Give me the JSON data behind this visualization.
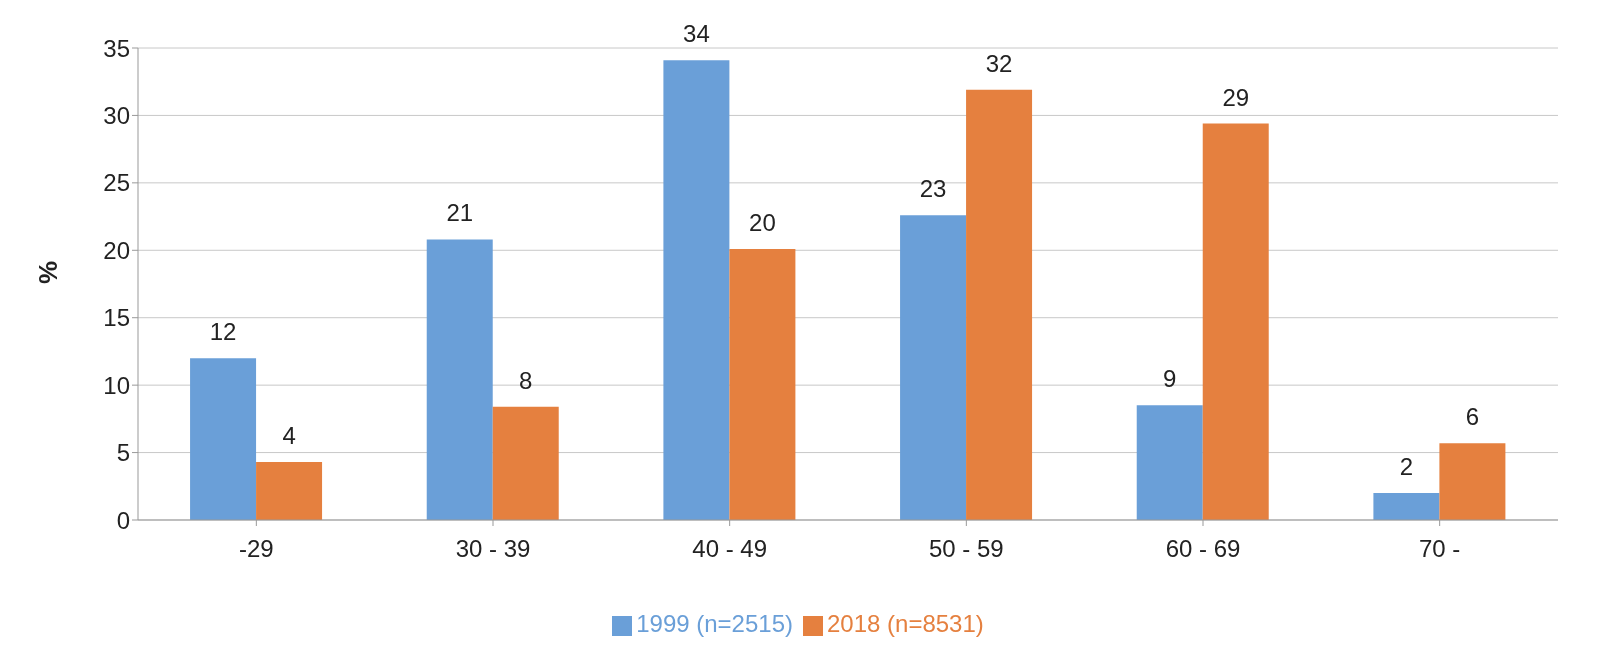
{
  "chart_data": {
    "type": "bar",
    "ylabel": "%",
    "categories": [
      "-29",
      "30 - 39",
      "40 - 49",
      "50 - 59",
      "60 - 69",
      "70 -"
    ],
    "series": [
      {
        "name": "1999 (n=2515)",
        "color": "#6a9fd8",
        "values": [
          12,
          20.8,
          34.1,
          22.6,
          8.5,
          2
        ],
        "value_labels": [
          "12",
          "21",
          "34",
          "23",
          "9",
          "2"
        ]
      },
      {
        "name": "2018 (n=8531)",
        "color": "#e5803f",
        "values": [
          4.3,
          8.4,
          20.1,
          31.9,
          29.4,
          5.7
        ],
        "value_labels": [
          "4",
          "8",
          "20",
          "32",
          "29",
          "6"
        ]
      }
    ],
    "ylim": [
      0,
      35
    ],
    "yticks": [
      0,
      5,
      10,
      15,
      20,
      25,
      30,
      35
    ],
    "grid": "y",
    "legend": "bottom"
  }
}
